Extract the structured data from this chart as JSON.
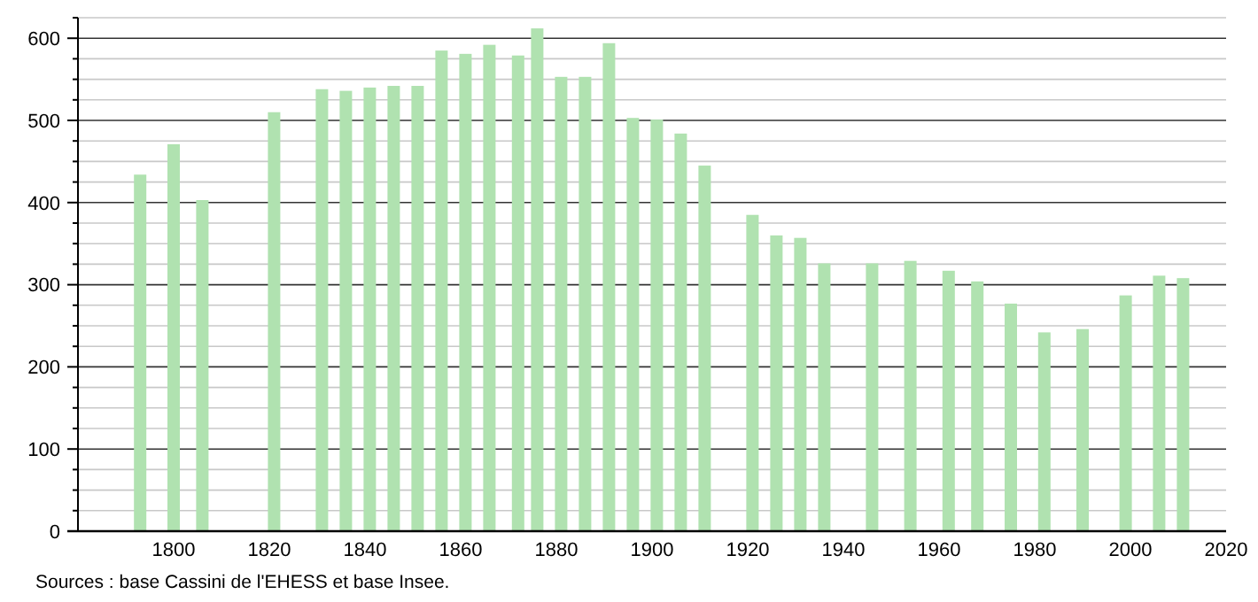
{
  "chart_data": {
    "type": "bar",
    "x": [
      1793,
      1800,
      1806,
      1821,
      1831,
      1836,
      1841,
      1846,
      1851,
      1856,
      1861,
      1866,
      1872,
      1876,
      1881,
      1886,
      1891,
      1896,
      1901,
      1906,
      1911,
      1921,
      1926,
      1931,
      1936,
      1946,
      1954,
      1962,
      1968,
      1975,
      1982,
      1990,
      1999,
      2006,
      2011
    ],
    "series": [
      {
        "color": "#b0e2b0",
        "values": [
          434,
          471,
          403,
          510,
          538,
          536,
          540,
          542,
          542,
          585,
          581,
          592,
          579,
          612,
          553,
          553,
          594,
          503,
          501,
          484,
          445,
          385,
          360,
          357,
          326,
          326,
          329,
          317,
          304,
          277,
          242,
          246,
          287,
          311,
          308
        ]
      }
    ],
    "xlim": [
      1780,
      2020
    ],
    "xticks": [
      1800,
      1820,
      1840,
      1860,
      1880,
      1900,
      1920,
      1940,
      1960,
      1980,
      2000,
      2020
    ],
    "ylim": [
      0,
      625
    ],
    "yticks": [
      0,
      {
        "value": 25,
        "label": null
      },
      {
        "value": 50,
        "label": null
      },
      {
        "value": 75,
        "label": null
      },
      100,
      {
        "value": 125,
        "label": null
      },
      {
        "value": 150,
        "label": null
      },
      {
        "value": 175,
        "label": null
      },
      200,
      {
        "value": 225,
        "label": null
      },
      {
        "value": 250,
        "label": null
      },
      {
        "value": 275,
        "label": null
      },
      300,
      {
        "value": 325,
        "label": null
      },
      {
        "value": 350,
        "label": null
      },
      {
        "value": 375,
        "label": null
      },
      400,
      {
        "value": 425,
        "label": null
      },
      {
        "value": 450,
        "label": null
      },
      {
        "value": 475,
        "label": null
      },
      500,
      {
        "value": 525,
        "label": null
      },
      {
        "value": 550,
        "label": null
      },
      {
        "value": 575,
        "label": null
      },
      600,
      {
        "value": 625,
        "label": null
      }
    ],
    "grid": true,
    "annotations": [
      "Sources : base Cassini de l'EHESS et base Insee."
    ]
  }
}
